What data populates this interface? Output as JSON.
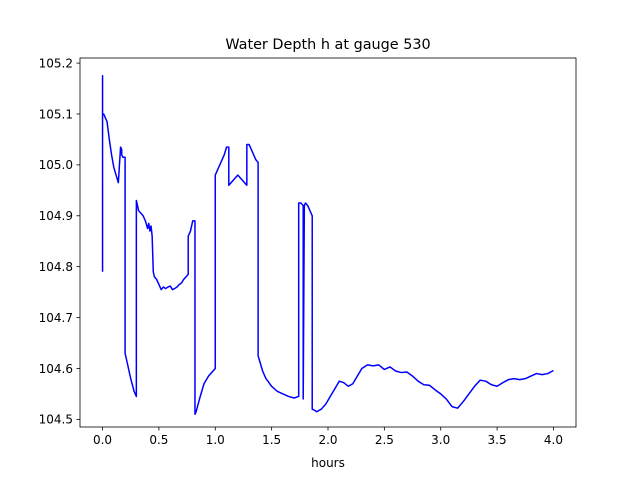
{
  "chart_data": {
    "type": "line",
    "title": "Water Depth h at gauge 530",
    "xlabel": "hours",
    "ylabel": "",
    "xlim": [
      -0.2,
      4.2
    ],
    "ylim": [
      104.485,
      105.21
    ],
    "xticks": [
      0.0,
      0.5,
      1.0,
      1.5,
      2.0,
      2.5,
      3.0,
      3.5,
      4.0
    ],
    "xtick_labels": [
      "0.0",
      "0.5",
      "1.0",
      "1.5",
      "2.0",
      "2.5",
      "3.0",
      "3.5",
      "4.0"
    ],
    "yticks": [
      104.5,
      104.6,
      104.7,
      104.8,
      104.9,
      105.0,
      105.1,
      105.2
    ],
    "ytick_labels": [
      "104.5",
      "104.6",
      "104.7",
      "104.8",
      "104.9",
      "105.0",
      "105.1",
      "105.2"
    ],
    "grid": false,
    "legend": "none",
    "series": [
      {
        "color": "#0000ff",
        "x": [
          0.0,
          0.0,
          0.0,
          0.002,
          0.01,
          0.02,
          0.04,
          0.06,
          0.08,
          0.1,
          0.12,
          0.14,
          0.16,
          0.17,
          0.17,
          0.18,
          0.2,
          0.2,
          0.22,
          0.25,
          0.28,
          0.3,
          0.3,
          0.31,
          0.32,
          0.34,
          0.36,
          0.38,
          0.4,
          0.41,
          0.42,
          0.43,
          0.44,
          0.45,
          0.46,
          0.48,
          0.5,
          0.52,
          0.54,
          0.56,
          0.58,
          0.6,
          0.62,
          0.64,
          0.66,
          0.68,
          0.7,
          0.72,
          0.74,
          0.76,
          0.76,
          0.78,
          0.8,
          0.82,
          0.82,
          0.83,
          0.86,
          0.9,
          0.94,
          0.98,
          1.0,
          1.0,
          1.02,
          1.04,
          1.06,
          1.08,
          1.1,
          1.12,
          1.12,
          1.14,
          1.16,
          1.18,
          1.2,
          1.22,
          1.24,
          1.26,
          1.28,
          1.28,
          1.3,
          1.32,
          1.34,
          1.36,
          1.38,
          1.38,
          1.4,
          1.42,
          1.45,
          1.5,
          1.55,
          1.6,
          1.65,
          1.7,
          1.74,
          1.74,
          1.76,
          1.78,
          1.78,
          1.79,
          1.8,
          1.82,
          1.84,
          1.86,
          1.86,
          1.88,
          1.9,
          1.94,
          1.98,
          2.02,
          2.06,
          2.1,
          2.14,
          2.18,
          2.22,
          2.26,
          2.3,
          2.35,
          2.4,
          2.45,
          2.5,
          2.55,
          2.6,
          2.65,
          2.7,
          2.75,
          2.8,
          2.85,
          2.9,
          2.95,
          3.0,
          3.05,
          3.1,
          3.15,
          3.2,
          3.25,
          3.3,
          3.35,
          3.4,
          3.45,
          3.5,
          3.55,
          3.6,
          3.65,
          3.7,
          3.75,
          3.8,
          3.85,
          3.9,
          3.95,
          4.0
        ],
        "y": [
          104.79,
          105.175,
          105.1,
          105.1,
          105.1,
          105.095,
          105.085,
          105.05,
          105.02,
          104.995,
          104.98,
          104.965,
          105.035,
          105.03,
          105.02,
          105.015,
          105.015,
          104.63,
          104.61,
          104.58,
          104.555,
          104.545,
          104.93,
          104.92,
          104.91,
          104.905,
          104.9,
          104.89,
          104.875,
          104.885,
          104.87,
          104.88,
          104.86,
          104.79,
          104.78,
          104.775,
          104.765,
          104.755,
          104.76,
          104.757,
          104.76,
          104.762,
          104.755,
          104.757,
          104.76,
          104.765,
          104.768,
          104.775,
          104.78,
          104.785,
          104.86,
          104.87,
          104.89,
          104.89,
          104.51,
          104.515,
          104.54,
          104.57,
          104.585,
          104.595,
          104.6,
          104.98,
          104.99,
          105.0,
          105.01,
          105.02,
          105.035,
          105.035,
          104.96,
          104.965,
          104.97,
          104.975,
          104.98,
          104.975,
          104.97,
          104.965,
          104.96,
          105.04,
          105.04,
          105.03,
          105.02,
          105.01,
          105.005,
          104.625,
          104.61,
          104.595,
          104.58,
          104.565,
          104.555,
          104.55,
          104.545,
          104.542,
          104.545,
          104.925,
          104.925,
          104.92,
          104.54,
          104.92,
          104.925,
          104.92,
          104.91,
          104.9,
          104.52,
          104.518,
          104.515,
          104.52,
          104.53,
          104.545,
          104.56,
          104.575,
          104.572,
          104.565,
          104.57,
          104.585,
          104.6,
          104.607,
          104.605,
          104.607,
          104.598,
          104.603,
          104.595,
          104.592,
          104.593,
          104.585,
          104.575,
          104.568,
          104.567,
          104.558,
          104.55,
          104.54,
          104.525,
          104.522,
          104.535,
          104.55,
          104.565,
          104.577,
          104.575,
          104.568,
          104.565,
          104.572,
          104.578,
          104.58,
          104.578,
          104.58,
          104.585,
          104.59,
          104.588,
          104.59,
          104.596
        ]
      }
    ]
  }
}
